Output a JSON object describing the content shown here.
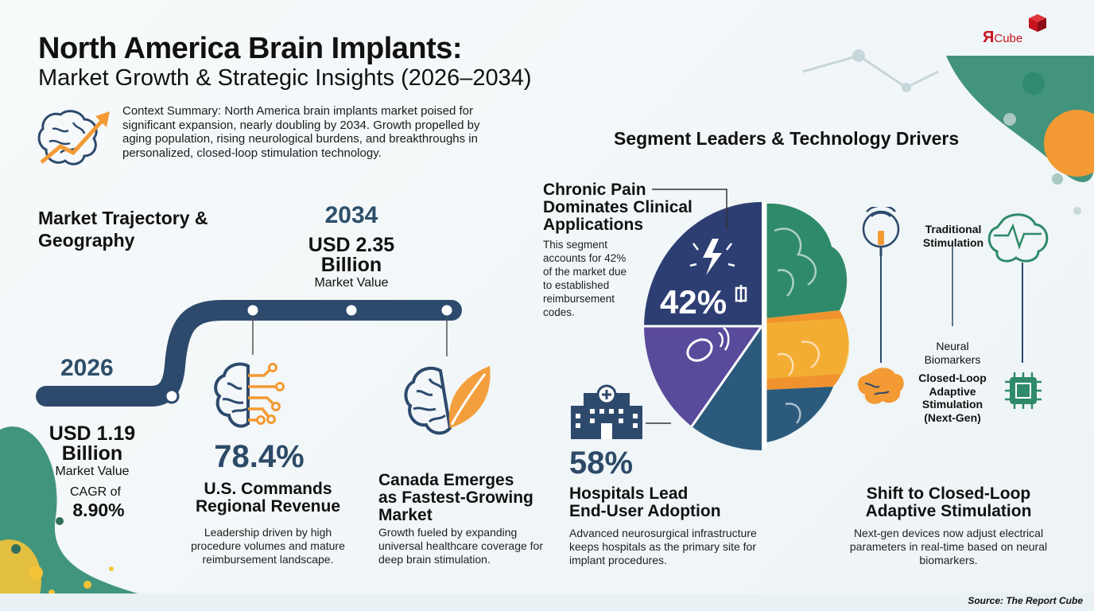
{
  "header": {
    "title": "North America Brain Implants:",
    "subtitle": "Market Growth & Strategic Insights (2026–2034)"
  },
  "logo": {
    "mark": "Я",
    "text": "Cube"
  },
  "context": {
    "summary": "Context Summary: North America brain implants market poised for significant expansion, nearly doubling by 2034. Growth propelled by aging population, rising neurological burdens, and breakthroughs in personalized, closed-loop stimulation technology."
  },
  "trajectory": {
    "title": "Market Trajectory & Geography",
    "start": {
      "year": "2026",
      "value_line1": "USD 1.19",
      "value_line2": "Billion",
      "value_label": "Market Value",
      "cagr_label": "CAGR of",
      "cagr": "8.90%"
    },
    "end": {
      "year": "2034",
      "value_line1": "USD 2.35",
      "value_line2": "Billion",
      "value_label": "Market Value"
    },
    "us": {
      "stat": "78.4%",
      "title_line1": "U.S. Commands",
      "title_line2": "Regional Revenue",
      "desc": "Leadership driven by high procedure volumes and mature reimbursement landscape."
    },
    "canada": {
      "title_line1": "Canada Emerges",
      "title_line2": "as Fastest-Growing",
      "title_line3": "Market",
      "desc": "Growth fueled by expanding universal healthcare coverage for deep brain stimulation."
    }
  },
  "segments": {
    "title": "Segment Leaders & Technology Drivers",
    "chronic_pain": {
      "title_line1": "Chronic Pain",
      "title_line2": "Dominates Clinical",
      "title_line3": "Applications",
      "desc": "This segment accounts for 42% of the market due to established reimbursement codes.",
      "stat": "42%"
    },
    "hospitals": {
      "stat": "58%",
      "title_line1": "Hospitals Lead",
      "title_line2": "End-User Adoption",
      "desc": "Advanced neurosurgical infrastructure keeps hospitals as the primary site for implant procedures."
    },
    "tech": {
      "traditional": "Traditional Stimulation",
      "biomarkers": "Neural Biomarkers",
      "closed_loop": "Closed-Loop Adaptive Stimulation (Next-Gen)",
      "title_line1": "Shift to Closed-Loop",
      "title_line2": "Adaptive Stimulation",
      "desc": "Next-gen devices now adjust electrical parameters in real-time based on neural biomarkers."
    }
  },
  "source": "Source: The Report Cube",
  "colors": {
    "navy": "#2d4a6d",
    "purple": "#5a4a9c",
    "teal": "#2f8a8a",
    "orange": "#f0922e",
    "yellow": "#f5c338",
    "green": "#2f8a62",
    "brand_red": "#c5141e"
  }
}
